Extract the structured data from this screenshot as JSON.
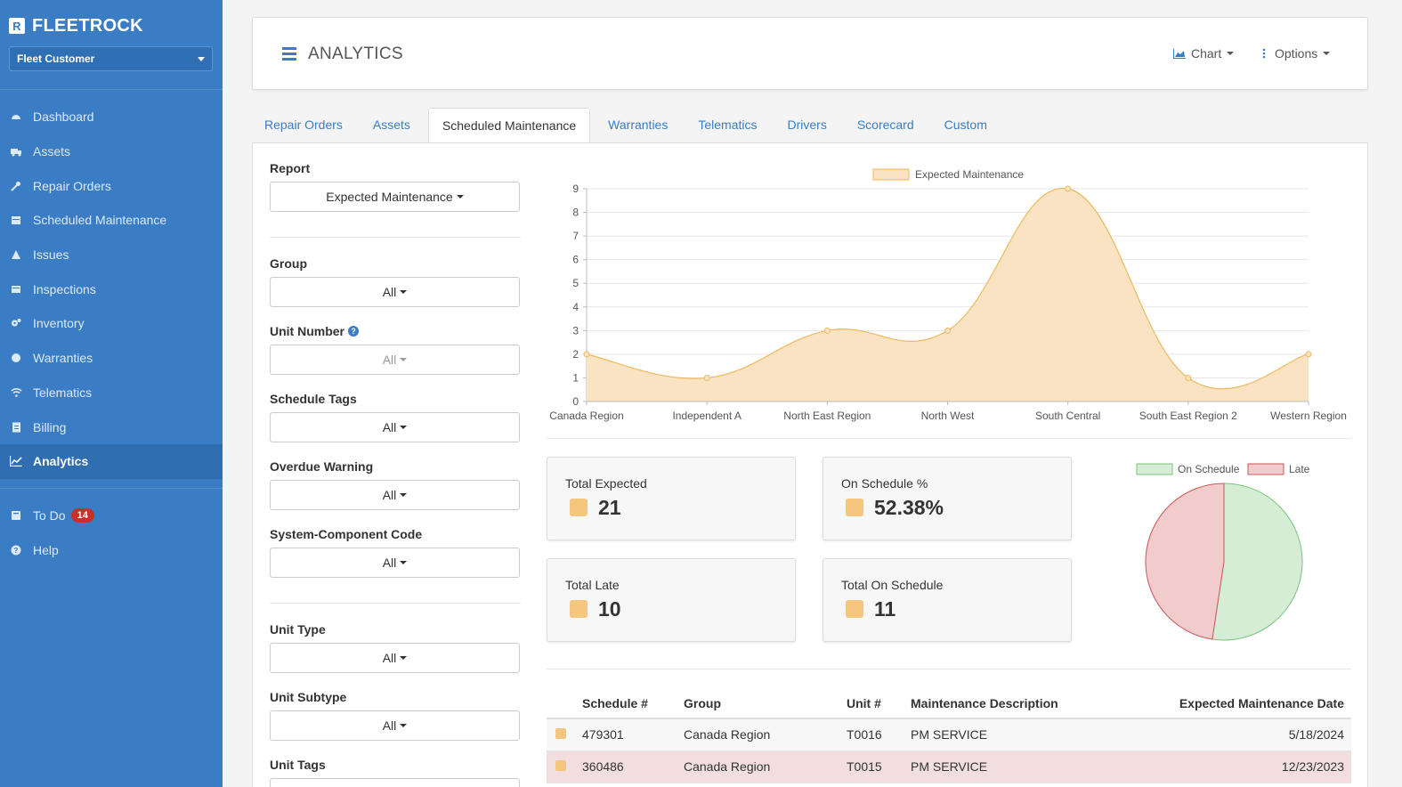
{
  "sidebar": {
    "brand": "FLEETROCK",
    "brand_logo_letter": "R",
    "customer_select": "Fleet Customer",
    "items": [
      {
        "label": "Dashboard",
        "icon": "dashboard-icon"
      },
      {
        "label": "Assets",
        "icon": "truck-icon"
      },
      {
        "label": "Repair Orders",
        "icon": "wrench-icon"
      },
      {
        "label": "Scheduled Maintenance",
        "icon": "calendar-icon"
      },
      {
        "label": "Issues",
        "icon": "warning-icon"
      },
      {
        "label": "Inspections",
        "icon": "clipboard-icon"
      },
      {
        "label": "Inventory",
        "icon": "cogs-icon"
      },
      {
        "label": "Warranties",
        "icon": "certificate-icon"
      },
      {
        "label": "Telematics",
        "icon": "wifi-icon"
      },
      {
        "label": "Billing",
        "icon": "file-icon"
      },
      {
        "label": "Analytics",
        "icon": "line-chart-icon",
        "active": true
      }
    ],
    "todo": {
      "label": "To Do",
      "count": "14"
    },
    "help": {
      "label": "Help"
    }
  },
  "header": {
    "title": "ANALYTICS",
    "chart_btn": "Chart",
    "options_btn": "Options"
  },
  "tabs": [
    "Repair Orders",
    "Assets",
    "Scheduled Maintenance",
    "Warranties",
    "Telematics",
    "Drivers",
    "Scorecard",
    "Custom"
  ],
  "active_tab": "Scheduled Maintenance",
  "filters": {
    "report_label": "Report",
    "report_value": "Expected Maintenance",
    "group_label": "Group",
    "group_value": "All",
    "unit_number_label": "Unit Number",
    "unit_number_value": "All",
    "schedule_tags_label": "Schedule Tags",
    "schedule_tags_value": "All",
    "overdue_label": "Overdue Warning",
    "overdue_value": "All",
    "system_code_label": "System-Component Code",
    "system_code_value": "All",
    "unit_type_label": "Unit Type",
    "unit_type_value": "All",
    "unit_subtype_label": "Unit Subtype",
    "unit_subtype_value": "All",
    "unit_tags_label": "Unit Tags"
  },
  "chart_data": [
    {
      "type": "area",
      "legend": [
        "Expected Maintenance"
      ],
      "categories": [
        "Canada Region",
        "Independent A",
        "North East Region",
        "North West",
        "South Central",
        "South East Region 2",
        "Western Region"
      ],
      "series": [
        {
          "name": "Expected Maintenance",
          "values": [
            2,
            1,
            3,
            3,
            9,
            1,
            2
          ]
        }
      ],
      "ylim": [
        0,
        9
      ],
      "yticks": [
        "0",
        "1",
        "2",
        "3",
        "4",
        "5",
        "6",
        "7",
        "8",
        "9"
      ],
      "grid": true,
      "legend_position": "top",
      "colors": {
        "fill": "#f9e3c2",
        "line": "#f0b860"
      }
    },
    {
      "type": "pie",
      "legend": [
        "On Schedule",
        "Late"
      ],
      "legend_position": "top",
      "values": [
        11,
        10
      ],
      "colors": {
        "on_schedule": "#d4edd4",
        "on_schedule_border": "#7cc47c",
        "late": "#f2cccc",
        "late_border": "#c9565a"
      }
    }
  ],
  "stats": {
    "total_expected_label": "Total Expected",
    "total_expected": "21",
    "on_schedule_pct_label": "On Schedule %",
    "on_schedule_pct": "52.38%",
    "total_late_label": "Total Late",
    "total_late": "10",
    "total_on_schedule_label": "Total On Schedule",
    "total_on_schedule": "11"
  },
  "table": {
    "headers": [
      "Schedule #",
      "Group",
      "Unit #",
      "Maintenance Description",
      "Expected Maintenance Date"
    ],
    "rows": [
      {
        "schedule": "479301",
        "group": "Canada Region",
        "unit": "T0016",
        "desc": "PM SERVICE",
        "date": "5/18/2024"
      },
      {
        "schedule": "360486",
        "group": "Canada Region",
        "unit": "T0015",
        "desc": "PM SERVICE",
        "date": "12/23/2023"
      }
    ]
  },
  "colors": {
    "sidebar": "#3a7dc4",
    "accent": "#3a7dc4",
    "swatch": "#f5c77e",
    "badge": "#c9302c"
  }
}
